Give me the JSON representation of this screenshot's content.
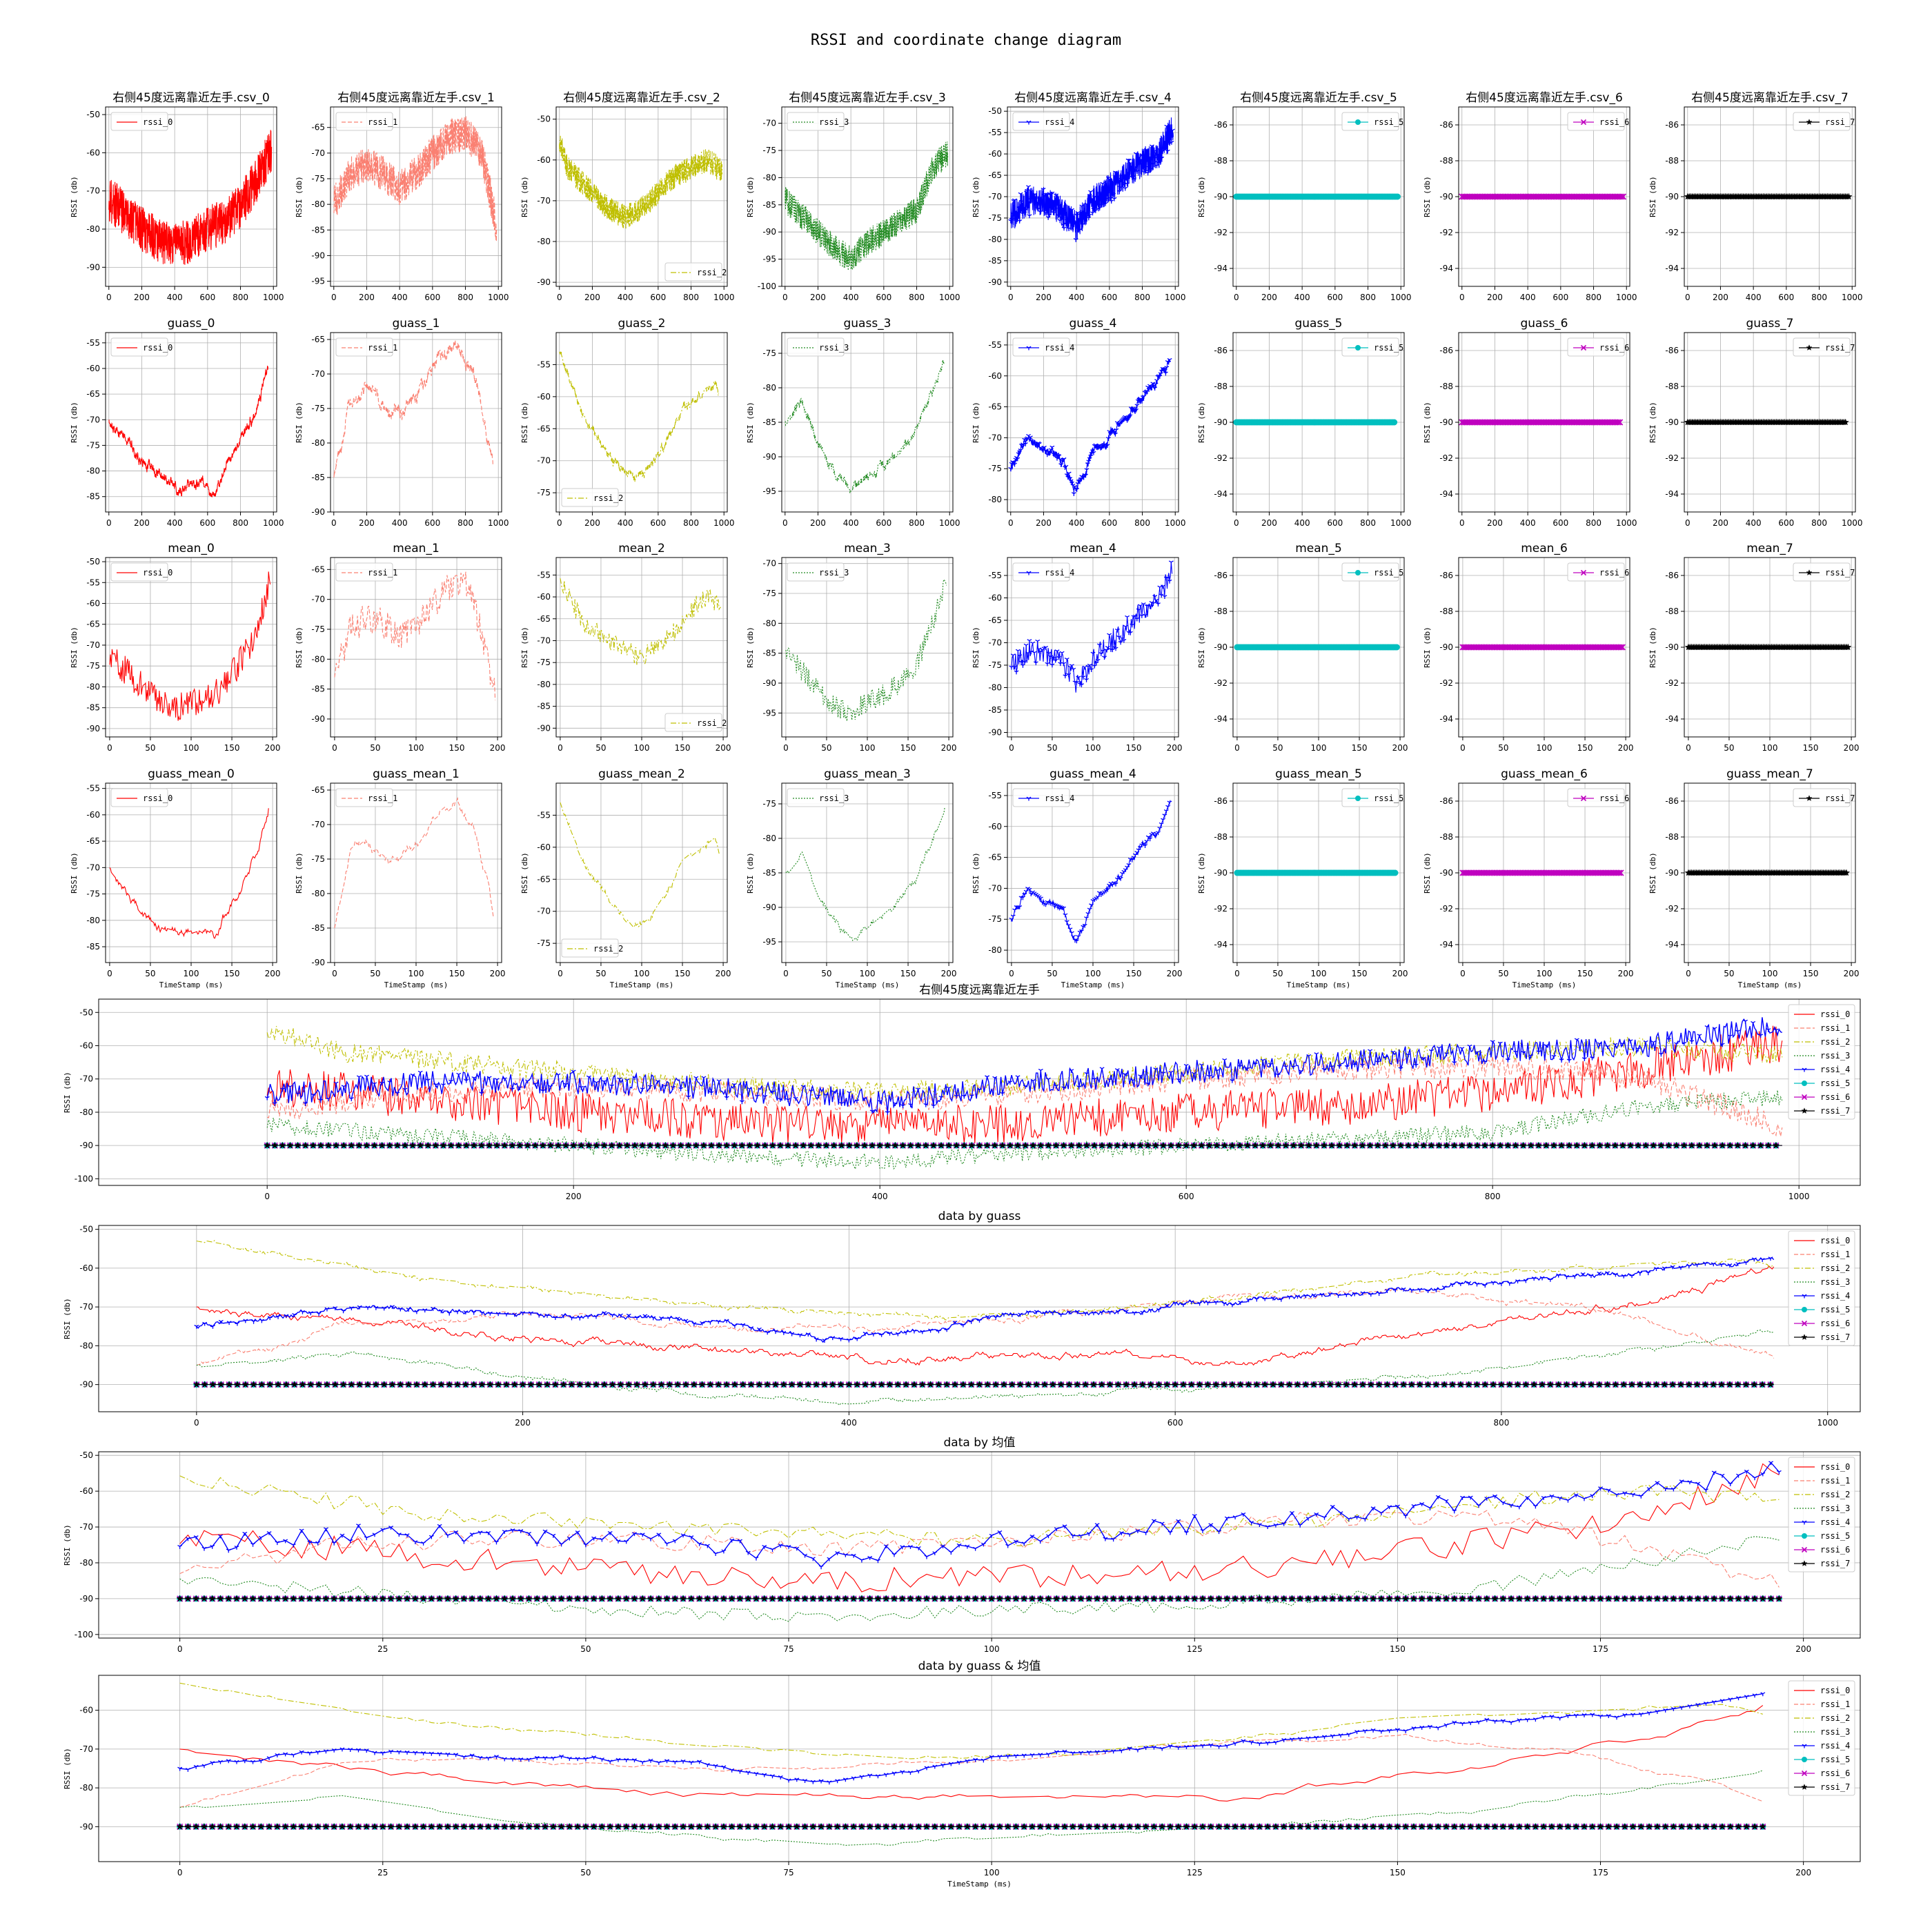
{
  "suptitle": "RSSI and coordinate change diagram",
  "colors": {
    "rssi_0": "#ff0000",
    "rssi_1": "#fa8072",
    "rssi_2": "#bfbf00",
    "rssi_3": "#228b22",
    "rssi_4": "#0000ff",
    "rssi_5": "#00bfbf",
    "rssi_6": "#bf00bf",
    "rssi_7": "#000000"
  },
  "chart_data": {
    "type": "line",
    "grid": true,
    "subplot_rows": [
      {
        "titles": [
          "右侧45度远离靠近左手.csv_0",
          "右侧45度远离靠近左手.csv_1",
          "右侧45度远离靠近左手.csv_2",
          "右侧45度远离靠近左手.csv_3",
          "右侧45度远离靠近左手.csv_4",
          "右侧45度远离靠近左手.csv_5",
          "右侧45度远离靠近左手.csv_6",
          "右侧45度远离靠近左手.csv_7"
        ],
        "x_ticks": [
          0,
          200,
          400,
          600,
          800,
          1000
        ],
        "xlim": [
          -20,
          1020
        ],
        "xlabel": "",
        "ylabel": "RSSI (db)"
      },
      {
        "titles": [
          "guass_0",
          "guass_1",
          "guass_2",
          "guass_3",
          "guass_4",
          "guass_5",
          "guass_6",
          "guass_7"
        ],
        "x_ticks": [
          0,
          200,
          400,
          600,
          800,
          1000
        ],
        "xlim": [
          -20,
          1020
        ],
        "xlabel": "",
        "ylabel": "RSSI (db)"
      },
      {
        "titles": [
          "mean_0",
          "mean_1",
          "mean_2",
          "mean_3",
          "mean_4",
          "mean_5",
          "mean_6",
          "mean_7"
        ],
        "x_ticks": [
          0,
          50,
          100,
          150,
          200
        ],
        "xlim": [
          -5,
          205
        ],
        "xlabel": "",
        "ylabel": "RSSI (db)"
      },
      {
        "titles": [
          "guass_mean_0",
          "guass_mean_1",
          "guass_mean_2",
          "guass_mean_3",
          "guass_mean_4",
          "guass_mean_5",
          "guass_mean_6",
          "guass_mean_7"
        ],
        "x_ticks": [
          0,
          50,
          100,
          150,
          200
        ],
        "xlim": [
          -5,
          205
        ],
        "xlabel": "TimeStamp (ms)",
        "ylabel": "RSSI (db)"
      }
    ],
    "subplot_ylims": [
      [
        [
          -95,
          -48
        ],
        [
          -96,
          -61
        ],
        [
          -91,
          -47
        ],
        [
          -100,
          -67
        ],
        [
          -91,
          -49
        ],
        [
          -95,
          -85
        ],
        [
          -95,
          -85
        ],
        [
          -95,
          -85
        ]
      ],
      [
        [
          -88,
          -53
        ],
        [
          -90,
          -64
        ],
        [
          -78,
          -50
        ],
        [
          -98,
          -72
        ],
        [
          -82,
          -53
        ],
        [
          -95,
          -85
        ],
        [
          -95,
          -85
        ],
        [
          -95,
          -85
        ]
      ],
      [
        [
          -92,
          -49
        ],
        [
          -93,
          -63
        ],
        [
          -92,
          -51
        ],
        [
          -99,
          -69
        ],
        [
          -91,
          -51
        ],
        [
          -95,
          -85
        ],
        [
          -95,
          -85
        ],
        [
          -95,
          -85
        ]
      ],
      [
        [
          -88,
          -54
        ],
        [
          -90,
          -64
        ],
        [
          -78,
          -50
        ],
        [
          -98,
          -72
        ],
        [
          -82,
          -53
        ],
        [
          -95,
          -85
        ],
        [
          -95,
          -85
        ],
        [
          -95,
          -85
        ]
      ]
    ],
    "subplot_yticks": [
      [
        [
          -90,
          -80,
          -70,
          -60,
          -50
        ],
        [
          -95,
          -90,
          -85,
          -80,
          -75,
          -70,
          -65
        ],
        [
          -90,
          -80,
          -70,
          -60,
          -50
        ],
        [
          -100,
          -95,
          -90,
          -85,
          -80,
          -75,
          -70
        ],
        [
          -90,
          -85,
          -80,
          -75,
          -70,
          -65,
          -60,
          -55,
          -50
        ],
        [
          -94,
          -92,
          -90,
          -88,
          -86
        ],
        [
          -94,
          -92,
          -90,
          -88,
          -86
        ],
        [
          -94,
          -92,
          -90,
          -88,
          -86
        ]
      ],
      [
        [
          -85,
          -80,
          -75,
          -70,
          -65,
          -60,
          -55
        ],
        [
          -90,
          -85,
          -80,
          -75,
          -70,
          -65
        ],
        [
          -75,
          -70,
          -65,
          -60,
          -55
        ],
        [
          -95,
          -90,
          -85,
          -80,
          -75
        ],
        [
          -80,
          -75,
          -70,
          -65,
          -60,
          -55
        ],
        [
          -94,
          -92,
          -90,
          -88,
          -86
        ],
        [
          -94,
          -92,
          -90,
          -88,
          -86
        ],
        [
          -94,
          -92,
          -90,
          -88,
          -86
        ]
      ],
      [
        [
          -90,
          -85,
          -80,
          -75,
          -70,
          -65,
          -60,
          -55,
          -50
        ],
        [
          -90,
          -85,
          -80,
          -75,
          -70,
          -65
        ],
        [
          -90,
          -85,
          -80,
          -75,
          -70,
          -65,
          -60,
          -55
        ],
        [
          -95,
          -90,
          -85,
          -80,
          -75,
          -70
        ],
        [
          -90,
          -85,
          -80,
          -75,
          -70,
          -65,
          -60,
          -55
        ],
        [
          -94,
          -92,
          -90,
          -88,
          -86
        ],
        [
          -94,
          -92,
          -90,
          -88,
          -86
        ],
        [
          -94,
          -92,
          -90,
          -88,
          -86
        ]
      ],
      [
        [
          -85,
          -80,
          -75,
          -70,
          -65,
          -60,
          -55
        ],
        [
          -90,
          -85,
          -80,
          -75,
          -70,
          -65
        ],
        [
          -75,
          -70,
          -65,
          -60,
          -55
        ],
        [
          -95,
          -90,
          -85,
          -80,
          -75
        ],
        [
          -80,
          -75,
          -70,
          -65,
          -60,
          -55
        ],
        [
          -94,
          -92,
          -90,
          -88,
          -86
        ],
        [
          -94,
          -92,
          -90,
          -88,
          -86
        ],
        [
          -94,
          -92,
          -90,
          -88,
          -86
        ]
      ]
    ],
    "subplot_legend_loc": [
      [
        "upper left",
        "upper left",
        "lower right",
        "upper left",
        "upper left",
        "upper right",
        "upper right",
        "upper right"
      ],
      [
        "upper left",
        "upper left",
        "lower left",
        "upper left",
        "upper left",
        "upper right",
        "upper right",
        "upper right"
      ],
      [
        "upper left",
        "upper left",
        "lower right",
        "upper left",
        "upper left",
        "upper right",
        "upper right",
        "upper right"
      ],
      [
        "upper left",
        "upper left",
        "lower left",
        "upper left",
        "upper left",
        "upper right",
        "upper right",
        "upper right"
      ]
    ],
    "series_names": [
      "rssi_0",
      "rssi_1",
      "rssi_2",
      "rssi_3",
      "rssi_4",
      "rssi_5",
      "rssi_6",
      "rssi_7"
    ],
    "series_shape": {
      "raw": {
        "n": 1000,
        "rssi_0": {
          "x": [
            0,
            100,
            200,
            300,
            400,
            500,
            600,
            700,
            800,
            900,
            1000
          ],
          "y": [
            -72,
            -76,
            -80,
            -83,
            -84,
            -83,
            -80,
            -78,
            -74,
            -67,
            -58
          ],
          "noise": 6
        },
        "rssi_1": {
          "x": [
            0,
            100,
            200,
            300,
            400,
            500,
            600,
            700,
            800,
            900,
            1000
          ],
          "y": [
            -80,
            -74,
            -72,
            -74,
            -77,
            -74,
            -70,
            -67,
            -66,
            -70,
            -86
          ],
          "noise": 3.5
        },
        "rssi_2": {
          "x": [
            0,
            50,
            150,
            300,
            400,
            500,
            600,
            700,
            800,
            900,
            1000
          ],
          "y": [
            -55,
            -62,
            -66,
            -72,
            -74,
            -72,
            -68,
            -64,
            -62,
            -60,
            -63
          ],
          "noise": 3
        },
        "rssi_3": {
          "x": [
            0,
            100,
            200,
            300,
            400,
            500,
            600,
            700,
            800,
            900,
            1000
          ],
          "y": [
            -84,
            -87,
            -90,
            -93,
            -95,
            -92,
            -90,
            -88,
            -86,
            -78,
            -75
          ],
          "noise": 2.5
        },
        "rssi_4": {
          "x": [
            0,
            100,
            200,
            300,
            400,
            500,
            600,
            700,
            800,
            900,
            1000
          ],
          "y": [
            -75,
            -71,
            -71,
            -73,
            -77,
            -71,
            -68,
            -65,
            -62,
            -60,
            -53
          ],
          "noise": 3.5
        },
        "flat": -90
      },
      "guass": {
        "n": 1000,
        "rssi_0": {
          "x": [
            0,
            50,
            150,
            250,
            350,
            450,
            550,
            650,
            700,
            800,
            900,
            1000
          ],
          "y": [
            -70,
            -72,
            -76,
            -80,
            -82,
            -83,
            -82,
            -84,
            -80,
            -74,
            -67,
            -56
          ],
          "noise": 1.5
        },
        "rssi_1": {
          "x": [
            0,
            100,
            200,
            300,
            400,
            500,
            600,
            700,
            750,
            850,
            950,
            1000
          ],
          "y": [
            -85,
            -74,
            -72,
            -74,
            -76,
            -73,
            -69,
            -67,
            -66,
            -70,
            -80,
            -88
          ],
          "noise": 1.2
        },
        "rssi_2": {
          "x": [
            0,
            50,
            150,
            250,
            350,
            450,
            550,
            650,
            750,
            850,
            950,
            1000
          ],
          "y": [
            -53,
            -57,
            -63,
            -67,
            -70,
            -73,
            -71,
            -67,
            -62,
            -60,
            -58,
            -64
          ],
          "noise": 0.8
        },
        "rssi_3": {
          "x": [
            0,
            100,
            200,
            300,
            400,
            500,
            600,
            700,
            800,
            900,
            1000
          ],
          "y": [
            -85,
            -82,
            -88,
            -92,
            -95,
            -93,
            -91,
            -89,
            -86,
            -80,
            -74
          ],
          "noise": 0.7
        },
        "rssi_4": {
          "x": [
            0,
            100,
            200,
            300,
            400,
            500,
            600,
            700,
            800,
            900,
            1000
          ],
          "y": [
            -75,
            -70,
            -72,
            -73,
            -79,
            -72,
            -70,
            -67,
            -63,
            -61,
            -54
          ],
          "noise": 1.0
        },
        "flat": -90
      },
      "mean": {
        "n": 200,
        "rssi_0": {
          "x": [
            0,
            20,
            40,
            60,
            80,
            100,
            120,
            140,
            160,
            180,
            200
          ],
          "y": [
            -73,
            -76,
            -80,
            -83,
            -85,
            -84,
            -82,
            -80,
            -74,
            -67,
            -52
          ],
          "noise": 3.5
        },
        "rssi_1": {
          "x": [
            0,
            20,
            40,
            60,
            80,
            100,
            120,
            140,
            160,
            180,
            200
          ],
          "y": [
            -82,
            -75,
            -73,
            -74,
            -76,
            -74,
            -71,
            -68,
            -67,
            -75,
            -88
          ],
          "noise": 2.5
        },
        "rssi_2": {
          "x": [
            0,
            10,
            30,
            60,
            80,
            100,
            120,
            140,
            160,
            180,
            200
          ],
          "y": [
            -55,
            -60,
            -66,
            -70,
            -72,
            -74,
            -71,
            -68,
            -63,
            -60,
            -62
          ],
          "noise": 2.2
        },
        "rssi_3": {
          "x": [
            0,
            20,
            40,
            60,
            80,
            100,
            120,
            140,
            160,
            180,
            200
          ],
          "y": [
            -84,
            -88,
            -91,
            -94,
            -95,
            -93,
            -92,
            -90,
            -87,
            -80,
            -72
          ],
          "noise": 1.8
        },
        "rssi_4": {
          "x": [
            0,
            20,
            40,
            60,
            80,
            100,
            120,
            140,
            160,
            180,
            200
          ],
          "y": [
            -75,
            -72,
            -72,
            -74,
            -79,
            -74,
            -70,
            -67,
            -63,
            -60,
            -53
          ],
          "noise": 2.5
        },
        "flat": -90
      }
    },
    "combined_panels": [
      {
        "title": "右侧45度远离靠近左手",
        "kind": "raw",
        "xlim": [
          -110,
          1040
        ],
        "ylim": [
          -102,
          -46
        ],
        "x_ticks": [
          0,
          200,
          400,
          600,
          800,
          1000
        ],
        "y_ticks": [
          -100,
          -90,
          -80,
          -70,
          -60,
          -50
        ],
        "xlabel": "",
        "ylabel": "RSSI (db)"
      },
      {
        "title": "data by guass",
        "kind": "guass",
        "xlim": [
          -60,
          1020
        ],
        "ylim": [
          -97,
          -49
        ],
        "x_ticks": [
          0,
          200,
          400,
          600,
          800,
          1000
        ],
        "y_ticks": [
          -90,
          -80,
          -70,
          -60,
          -50
        ],
        "xlabel": "",
        "ylabel": "RSSI (db)"
      },
      {
        "title": "data by 均值",
        "kind": "mean",
        "xlim": [
          -10,
          207
        ],
        "ylim": [
          -101,
          -49
        ],
        "x_ticks": [
          0,
          25,
          50,
          75,
          100,
          125,
          150,
          175,
          200
        ],
        "y_ticks": [
          -100,
          -90,
          -80,
          -70,
          -60,
          -50
        ],
        "xlabel": "",
        "ylabel": "RSSI (db)"
      },
      {
        "title": "data by guass & 均值",
        "kind": "guass_mean",
        "xlim": [
          -10,
          207
        ],
        "ylim": [
          -99,
          -51
        ],
        "x_ticks": [
          0,
          25,
          50,
          75,
          100,
          125,
          150,
          175,
          200
        ],
        "y_ticks": [
          -90,
          -80,
          -70,
          -60
        ],
        "xlabel": "TimeStamp (ms)",
        "ylabel": "RSSI (db)"
      }
    ],
    "combined_legend_loc": "upper right",
    "markers": {
      "rssi_4": "tri_down",
      "rssi_5": "circle",
      "rssi_6": "x",
      "rssi_7": "star"
    },
    "linestyles": {
      "rssi_0": "solid",
      "rssi_1": "dashed",
      "rssi_2": "dashdot",
      "rssi_3": "dotted",
      "rssi_4": "solid",
      "rssi_5": "solid",
      "rssi_6": "solid",
      "rssi_7": "solid"
    }
  }
}
